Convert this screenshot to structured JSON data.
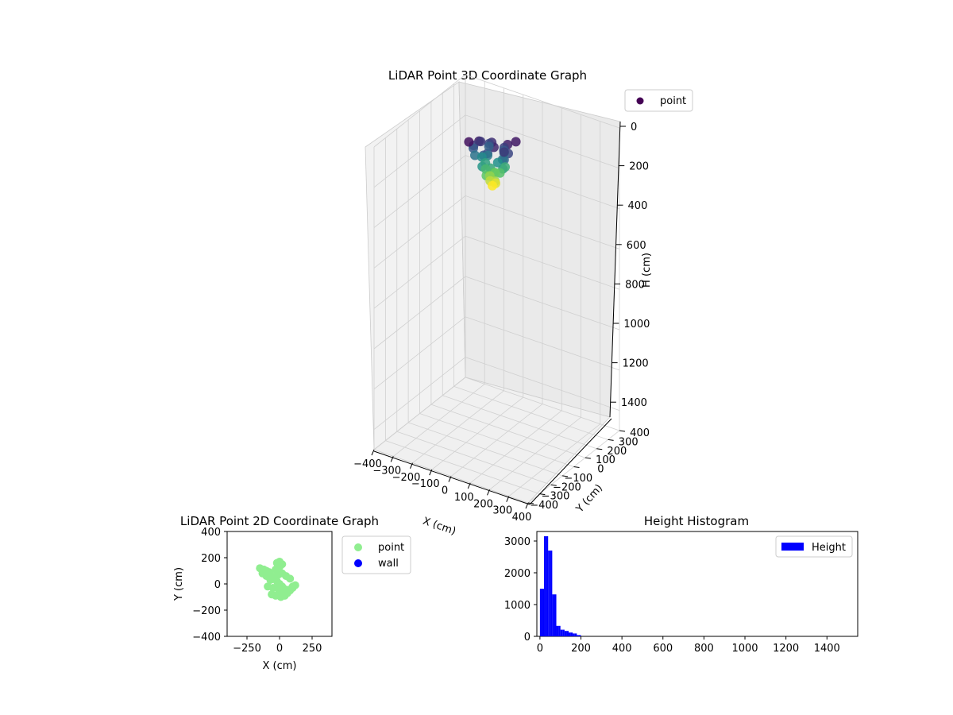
{
  "figure": {
    "plot3d": {
      "title": "LiDAR Point 3D Coordinate Graph",
      "legend": [
        "point"
      ],
      "xlabel": "X (cm)",
      "ylabel": "Y (cm)",
      "zlabel": "H (cm)",
      "x_ticks": [
        "−400",
        "−300",
        "−200",
        "−100",
        "0",
        "100",
        "200",
        "300",
        "400"
      ],
      "y_ticks": [
        "−400",
        "−300",
        "−200",
        "−100",
        "0",
        "100",
        "200",
        "300",
        "400"
      ],
      "z_ticks": [
        "0",
        "200",
        "400",
        "600",
        "800",
        "1000",
        "1200",
        "1400"
      ],
      "colors": {
        "point": "#440154",
        "colormap": [
          "#440154",
          "#3b528b",
          "#21918c",
          "#5ec962",
          "#fde725"
        ]
      }
    },
    "plot2d": {
      "title": "LiDAR Point 2D Coordinate Graph",
      "xlabel": "X (cm)",
      "ylabel": "Y (cm)",
      "x_ticks": [
        "−250",
        "0",
        "250"
      ],
      "y_ticks": [
        "400",
        "200",
        "0",
        "−200",
        "−400"
      ],
      "legend": [
        "point",
        "wall"
      ],
      "colors": {
        "point": "#90ee90",
        "wall": "#0000ff"
      }
    },
    "histogram": {
      "title": "Height Histogram",
      "legend": [
        "Height"
      ],
      "x_ticks": [
        "0",
        "200",
        "400",
        "600",
        "800",
        "1000",
        "1200",
        "1400"
      ],
      "y_ticks": [
        "0",
        "1000",
        "2000",
        "3000"
      ],
      "colors": {
        "bar": "#0000ff"
      }
    }
  },
  "chart_data": [
    {
      "type": "scatter",
      "title": "LiDAR Point 3D Coordinate Graph",
      "xlabel": "X (cm)",
      "ylabel": "Y (cm)",
      "zlabel": "H (cm)",
      "xlim": [
        -400,
        400
      ],
      "ylim": [
        -400,
        400
      ],
      "zlim": [
        0,
        1500
      ],
      "z_inverted": true,
      "grid": true,
      "legend_position": "top-right",
      "series": [
        {
          "name": "point",
          "x": [
            -60,
            -20,
            20,
            60,
            -80,
            -40,
            0,
            40,
            80,
            -90,
            -50,
            -10,
            30,
            70,
            -70,
            -30,
            10,
            50,
            -60,
            -20,
            20,
            60,
            -40,
            0,
            40,
            -30,
            10,
            30,
            -10,
            0,
            -20,
            20,
            -10,
            10,
            0,
            -80,
            80,
            -70,
            70
          ],
          "y": [
            0,
            40,
            -30,
            20,
            -10,
            60,
            -50,
            30,
            -20,
            10,
            80,
            -70,
            50,
            -40,
            -20,
            20,
            100,
            -10,
            30,
            -60,
            10,
            -30,
            20,
            -20,
            40,
            0,
            -10,
            10,
            -40,
            30,
            20,
            -20,
            0,
            10,
            0,
            -60,
            60,
            40,
            -40
          ],
          "h": [
            20,
            30,
            25,
            20,
            40,
            45,
            50,
            40,
            45,
            60,
            65,
            55,
            60,
            70,
            80,
            85,
            90,
            80,
            100,
            110,
            105,
            115,
            120,
            125,
            130,
            140,
            145,
            150,
            155,
            160,
            175,
            180,
            190,
            200,
            210,
            10,
            15,
            35,
            35
          ]
        }
      ]
    },
    {
      "type": "scatter",
      "title": "LiDAR Point 2D Coordinate Graph",
      "xlabel": "X (cm)",
      "ylabel": "Y (cm)",
      "xlim": [
        -400,
        400
      ],
      "ylim": [
        -400,
        400
      ],
      "legend_position": "outside-right",
      "series": [
        {
          "name": "point",
          "x": [
            -150,
            -120,
            -100,
            -80,
            -60,
            -40,
            -20,
            0,
            20,
            40,
            60,
            80,
            100,
            120,
            -60,
            -30,
            0,
            30,
            60,
            -90,
            -50,
            -10,
            30,
            70,
            100,
            -20,
            0,
            20,
            -70,
            -40,
            -10,
            20,
            50,
            80,
            -100,
            -130,
            10,
            40,
            -30,
            0
          ],
          "y": [
            120,
            110,
            100,
            90,
            60,
            40,
            20,
            0,
            -20,
            -40,
            -60,
            -50,
            -30,
            -10,
            -80,
            -90,
            -85,
            -75,
            -70,
            -20,
            -30,
            -40,
            -50,
            -45,
            -20,
            160,
            170,
            150,
            30,
            50,
            70,
            80,
            60,
            40,
            60,
            80,
            -100,
            -90,
            110,
            130
          ]
        },
        {
          "name": "wall",
          "x": [],
          "y": []
        }
      ]
    },
    {
      "type": "bar",
      "title": "Height Histogram",
      "xlim": [
        -15,
        1550
      ],
      "ylim": [
        0,
        3300
      ],
      "legend_position": "top-right",
      "series": [
        {
          "name": "Height",
          "bin_edges": [
            0,
            10,
            20,
            30,
            40,
            50,
            60,
            70,
            80,
            90,
            100,
            110,
            120,
            130,
            140,
            150,
            160,
            170,
            180,
            190,
            200
          ],
          "values": [
            1500,
            1500,
            3150,
            3150,
            2700,
            2700,
            1320,
            1320,
            330,
            330,
            210,
            210,
            170,
            170,
            120,
            120,
            90,
            90,
            40,
            40
          ]
        }
      ]
    }
  ]
}
